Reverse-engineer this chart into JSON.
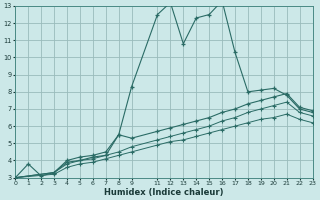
{
  "title": "",
  "xlabel": "Humidex (Indice chaleur)",
  "bg_color": "#cce8e8",
  "grid_color": "#99bbbb",
  "line_color": "#2a6b65",
  "xlim": [
    0,
    23
  ],
  "ylim": [
    3,
    13
  ],
  "xticks": [
    0,
    1,
    2,
    3,
    4,
    5,
    6,
    7,
    8,
    9,
    11,
    12,
    13,
    14,
    15,
    16,
    17,
    18,
    19,
    20,
    21,
    22,
    23
  ],
  "yticks": [
    3,
    4,
    5,
    6,
    7,
    8,
    9,
    10,
    11,
    12,
    13
  ],
  "line1_x": [
    0,
    1,
    2,
    3,
    4,
    5,
    6,
    7,
    8,
    9,
    11,
    12,
    13,
    14,
    15,
    16,
    17,
    18,
    19,
    20,
    21,
    22,
    23
  ],
  "line1_y": [
    3.0,
    3.8,
    3.1,
    3.3,
    3.9,
    4.0,
    4.2,
    4.3,
    5.5,
    8.3,
    12.5,
    13.2,
    10.8,
    12.3,
    12.5,
    13.3,
    10.3,
    8.0,
    8.1,
    8.2,
    7.8,
    7.0,
    6.8
  ],
  "line2_x": [
    0,
    3,
    4,
    5,
    6,
    7,
    8,
    9,
    11,
    12,
    13,
    14,
    15,
    16,
    17,
    18,
    19,
    20,
    21,
    22,
    23
  ],
  "line2_y": [
    3.0,
    3.3,
    4.0,
    4.2,
    4.3,
    4.5,
    5.5,
    5.3,
    5.7,
    5.9,
    6.1,
    6.3,
    6.5,
    6.8,
    7.0,
    7.3,
    7.5,
    7.7,
    7.9,
    7.1,
    6.9
  ],
  "line3_x": [
    0,
    3,
    4,
    5,
    6,
    7,
    8,
    9,
    11,
    12,
    13,
    14,
    15,
    16,
    17,
    18,
    19,
    20,
    21,
    22,
    23
  ],
  "line3_y": [
    3.0,
    3.3,
    3.8,
    4.0,
    4.1,
    4.3,
    4.5,
    4.8,
    5.2,
    5.4,
    5.6,
    5.8,
    6.0,
    6.3,
    6.5,
    6.8,
    7.0,
    7.2,
    7.4,
    6.8,
    6.6
  ],
  "line4_x": [
    0,
    3,
    4,
    5,
    6,
    7,
    8,
    9,
    11,
    12,
    13,
    14,
    15,
    16,
    17,
    18,
    19,
    20,
    21,
    22,
    23
  ],
  "line4_y": [
    3.0,
    3.2,
    3.6,
    3.8,
    3.9,
    4.1,
    4.3,
    4.5,
    4.9,
    5.1,
    5.2,
    5.4,
    5.6,
    5.8,
    6.0,
    6.2,
    6.4,
    6.5,
    6.7,
    6.4,
    6.2
  ]
}
